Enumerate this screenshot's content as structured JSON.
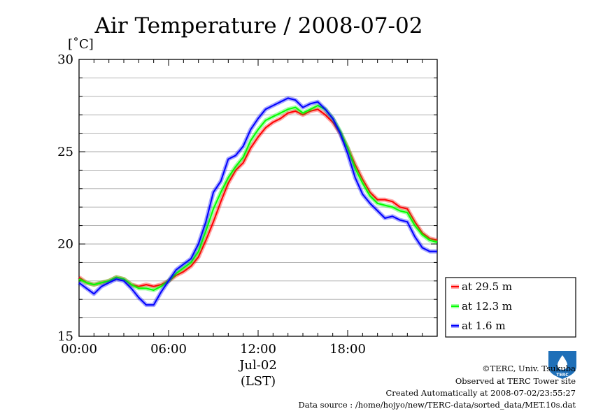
{
  "chart_data": {
    "type": "line",
    "title": "Air Temperature / 2008-07-02",
    "ylabel": "[˚C]",
    "xlabel": "(LST)",
    "date_label": "Jul-02",
    "ylim": [
      15,
      30
    ],
    "yticks": [
      "30",
      "25",
      "20",
      "15"
    ],
    "xlim_hours": [
      0,
      24
    ],
    "xticks": [
      "00:00",
      "06:00",
      "12:00",
      "18:00"
    ],
    "grid": true,
    "legend_position": "bottom-right",
    "series": [
      {
        "name": "at 29.5 m",
        "color": "#ff0000",
        "x": [
          0,
          0.5,
          1,
          1.5,
          2,
          2.5,
          3,
          3.5,
          4,
          4.5,
          5,
          5.5,
          6,
          6.5,
          7,
          7.5,
          8,
          8.5,
          9,
          9.5,
          10,
          10.5,
          11,
          11.5,
          12,
          12.5,
          13,
          13.5,
          14,
          14.5,
          15,
          15.5,
          16,
          16.5,
          17,
          17.5,
          18,
          18.5,
          19,
          19.5,
          20,
          20.5,
          21,
          21.5,
          22,
          22.5,
          23,
          23.5,
          24
        ],
        "y": [
          18.2,
          17.9,
          17.8,
          17.9,
          18.0,
          18.2,
          18.1,
          17.8,
          17.7,
          17.8,
          17.7,
          17.8,
          18.0,
          18.3,
          18.5,
          18.8,
          19.3,
          20.2,
          21.2,
          22.3,
          23.3,
          24.0,
          24.4,
          25.2,
          25.8,
          26.3,
          26.6,
          26.8,
          27.1,
          27.2,
          27.0,
          27.2,
          27.3,
          27.0,
          26.6,
          26.0,
          25.2,
          24.3,
          23.5,
          22.8,
          22.4,
          22.4,
          22.3,
          22.0,
          21.9,
          21.2,
          20.6,
          20.3,
          20.2
        ]
      },
      {
        "name": "at 12.3 m",
        "color": "#00ff00",
        "x": [
          0,
          0.5,
          1,
          1.5,
          2,
          2.5,
          3,
          3.5,
          4,
          4.5,
          5,
          5.5,
          6,
          6.5,
          7,
          7.5,
          8,
          8.5,
          9,
          9.5,
          10,
          10.5,
          11,
          11.5,
          12,
          12.5,
          13,
          13.5,
          14,
          14.5,
          15,
          15.5,
          16,
          16.5,
          17,
          17.5,
          18,
          18.5,
          19,
          19.5,
          20,
          20.5,
          21,
          21.5,
          22,
          22.5,
          23,
          23.5,
          24
        ],
        "y": [
          18.1,
          17.9,
          17.8,
          17.9,
          18.0,
          18.2,
          18.1,
          17.8,
          17.6,
          17.6,
          17.5,
          17.7,
          18.0,
          18.4,
          18.7,
          19.0,
          19.6,
          20.7,
          21.9,
          22.8,
          23.6,
          24.2,
          24.7,
          25.6,
          26.2,
          26.7,
          26.9,
          27.1,
          27.3,
          27.4,
          27.1,
          27.3,
          27.5,
          27.3,
          26.8,
          26.1,
          25.2,
          24.1,
          23.3,
          22.6,
          22.2,
          22.1,
          22.0,
          21.8,
          21.7,
          21.0,
          20.5,
          20.2,
          20.1
        ]
      },
      {
        "name": "at 1.6 m",
        "color": "#0000ff",
        "x": [
          0,
          0.5,
          1,
          1.5,
          2,
          2.5,
          3,
          3.5,
          4,
          4.5,
          5,
          5.5,
          6,
          6.5,
          7,
          7.5,
          8,
          8.5,
          9,
          9.5,
          10,
          10.5,
          11,
          11.5,
          12,
          12.5,
          13,
          13.5,
          14,
          14.5,
          15,
          15.5,
          16,
          16.5,
          17,
          17.5,
          18,
          18.5,
          19,
          19.5,
          20,
          20.5,
          21,
          21.5,
          22,
          22.5,
          23,
          23.5,
          24
        ],
        "y": [
          17.9,
          17.6,
          17.3,
          17.7,
          17.9,
          18.1,
          18.0,
          17.6,
          17.1,
          16.7,
          16.7,
          17.4,
          18.0,
          18.6,
          18.9,
          19.2,
          20.0,
          21.2,
          22.8,
          23.4,
          24.6,
          24.8,
          25.3,
          26.2,
          26.8,
          27.3,
          27.5,
          27.7,
          27.9,
          27.8,
          27.4,
          27.6,
          27.7,
          27.3,
          26.8,
          26.0,
          24.9,
          23.6,
          22.7,
          22.2,
          21.8,
          21.4,
          21.5,
          21.3,
          21.2,
          20.4,
          19.8,
          19.6,
          19.6
        ]
      }
    ]
  },
  "footer": {
    "copyright": "©TERC, Univ. Tsukuba",
    "observed": "Observed at TERC Tower site",
    "created": "Created Automatically at 2008-07-02/23:55:27",
    "source": "Data source : /home/hojyo/new/TERC-data/sorted_data/MET.10s.dat"
  },
  "logo": {
    "text": "TERC",
    "color": "#1e6fb8"
  }
}
